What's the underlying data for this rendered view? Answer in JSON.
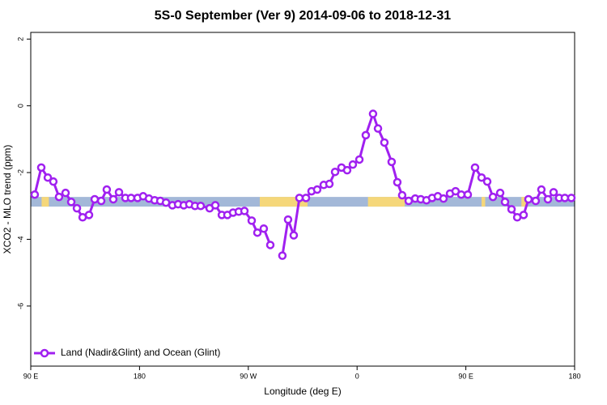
{
  "chart_data": {
    "type": "line",
    "title": "5S-0 September (Ver 9)   2014-09-06 to 2018-12-31",
    "x_label": "Longitude (deg E)",
    "y_label": "XCO2 - MLO trend (ppm)",
    "xlim": [
      90,
      540
    ],
    "xticks": [
      {
        "value": 90,
        "label": "90 E"
      },
      {
        "value": 180,
        "label": "180"
      },
      {
        "value": 270,
        "label": "90 W"
      },
      {
        "value": 360,
        "label": "0"
      },
      {
        "value": 450,
        "label": "90 E"
      },
      {
        "value": 540,
        "label": "180"
      }
    ],
    "ylim": [
      -7.8,
      2.2
    ],
    "yticks": [
      -6,
      -4,
      -2,
      0,
      2
    ],
    "band_ylim": [
      -3.02,
      -2.73
    ],
    "band_color": "#a3b8d8",
    "land_color": "#f5d77a",
    "land_segments": [
      [
        99,
        105
      ],
      [
        279.5,
        319
      ],
      [
        369,
        399.4
      ],
      [
        463,
        466
      ],
      [
        496,
        500
      ]
    ],
    "legend": "bottom-left",
    "series": [
      {
        "name": "Land (Nadir&Glint) and Ocean (Glint)",
        "color": "#a020f0",
        "x": [
          93.3,
          98.7,
          104.1,
          108.7,
          113.4,
          118.8,
          123.5,
          128.2,
          132.9,
          138.2,
          142.9,
          148.3,
          152.9,
          158.3,
          163.0,
          168.3,
          173.0,
          178.4,
          183.0,
          187.8,
          192.5,
          197.2,
          201.9,
          207.2,
          211.9,
          216.6,
          221.2,
          225.9,
          230.6,
          238.0,
          242.7,
          248.1,
          252.7,
          257.4,
          262.1,
          266.8,
          272.8,
          277.5,
          282.8,
          288.2,
          293.0,
          298.2,
          302.9,
          307.6,
          312.3,
          317.7,
          322.3,
          327.0,
          332.4,
          337.1,
          341.8,
          347.1,
          351.8,
          356.5,
          361.9,
          367.2,
          373.2,
          377.3,
          382.6,
          388.6,
          393.3,
          397.3,
          402.7,
          408.1,
          412.7,
          417.4,
          422.1,
          426.8,
          431.5,
          436.9,
          441.5,
          446.2,
          451.6,
          457.6,
          463.0,
          467.7,
          472.4,
          478.4,
          482.4,
          487.8,
          492.5,
          497.8,
          501.8,
          507.8,
          512.5,
          517.9,
          522.6,
          527.2,
          531.9,
          537.3
        ],
        "values": [
          -2.66,
          -1.85,
          -2.15,
          -2.27,
          -2.73,
          -2.61,
          -2.88,
          -3.07,
          -3.34,
          -3.27,
          -2.8,
          -2.85,
          -2.51,
          -2.8,
          -2.59,
          -2.76,
          -2.76,
          -2.76,
          -2.71,
          -2.78,
          -2.83,
          -2.85,
          -2.9,
          -2.98,
          -2.95,
          -2.98,
          -2.95,
          -3.0,
          -3.0,
          -3.07,
          -2.98,
          -3.27,
          -3.27,
          -3.2,
          -3.17,
          -3.15,
          -3.44,
          -3.8,
          -3.68,
          -4.17,
          null,
          -4.49,
          -3.41,
          -3.88,
          -2.76,
          -2.76,
          -2.56,
          -2.51,
          -2.37,
          -2.34,
          -1.98,
          -1.85,
          -1.93,
          -1.76,
          -1.61,
          -0.88,
          -0.24,
          -0.68,
          -1.1,
          -1.68,
          -2.29,
          -2.68,
          -2.85,
          -2.78,
          -2.8,
          -2.83,
          -2.76,
          -2.71,
          -2.78,
          -2.63,
          -2.56,
          -2.66,
          -2.66,
          -1.85,
          -2.15,
          -2.27,
          -2.73,
          -2.61,
          -2.88,
          -3.1,
          -3.34,
          -3.27,
          -2.8,
          -2.85,
          -2.51,
          -2.8,
          -2.59,
          -2.76,
          -2.76,
          -2.76
        ]
      }
    ]
  }
}
